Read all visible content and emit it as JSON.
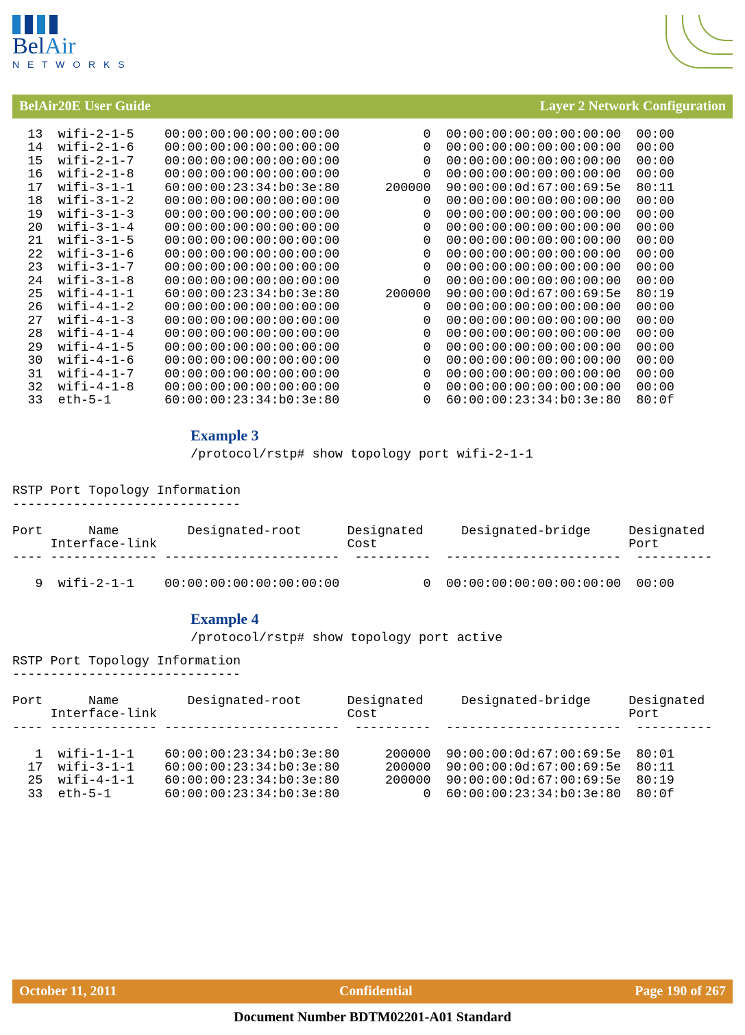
{
  "logo": {
    "line1_a": "Bel",
    "line1_b": "Air",
    "sub": "N E T W O R K S",
    "bar_colors": [
      "#1a7ec7",
      "#0b3c8c",
      "#1a7ec7",
      "#0b3c8c"
    ]
  },
  "banner": {
    "left": "BelAir20E User Guide",
    "right": "Layer 2 Network Configuration",
    "bg": "#9cb444"
  },
  "table1": {
    "col_widths": {
      "port": 4,
      "name": 14,
      "root": 25,
      "cost": 10,
      "bridge": 25,
      "dport": 7
    },
    "rows": [
      {
        "port": "13",
        "name": "wifi-2-1-5",
        "root": "00:00:00:00:00:00:00:00",
        "cost": "0",
        "bridge": "00:00:00:00:00:00:00:00",
        "dport": "00:00"
      },
      {
        "port": "14",
        "name": "wifi-2-1-6",
        "root": "00:00:00:00:00:00:00:00",
        "cost": "0",
        "bridge": "00:00:00:00:00:00:00:00",
        "dport": "00:00"
      },
      {
        "port": "15",
        "name": "wifi-2-1-7",
        "root": "00:00:00:00:00:00:00:00",
        "cost": "0",
        "bridge": "00:00:00:00:00:00:00:00",
        "dport": "00:00"
      },
      {
        "port": "16",
        "name": "wifi-2-1-8",
        "root": "00:00:00:00:00:00:00:00",
        "cost": "0",
        "bridge": "00:00:00:00:00:00:00:00",
        "dport": "00:00"
      },
      {
        "port": "17",
        "name": "wifi-3-1-1",
        "root": "60:00:00:23:34:b0:3e:80",
        "cost": "200000",
        "bridge": "90:00:00:0d:67:00:69:5e",
        "dport": "80:11"
      },
      {
        "port": "18",
        "name": "wifi-3-1-2",
        "root": "00:00:00:00:00:00:00:00",
        "cost": "0",
        "bridge": "00:00:00:00:00:00:00:00",
        "dport": "00:00"
      },
      {
        "port": "19",
        "name": "wifi-3-1-3",
        "root": "00:00:00:00:00:00:00:00",
        "cost": "0",
        "bridge": "00:00:00:00:00:00:00:00",
        "dport": "00:00"
      },
      {
        "port": "20",
        "name": "wifi-3-1-4",
        "root": "00:00:00:00:00:00:00:00",
        "cost": "0",
        "bridge": "00:00:00:00:00:00:00:00",
        "dport": "00:00"
      },
      {
        "port": "21",
        "name": "wifi-3-1-5",
        "root": "00:00:00:00:00:00:00:00",
        "cost": "0",
        "bridge": "00:00:00:00:00:00:00:00",
        "dport": "00:00"
      },
      {
        "port": "22",
        "name": "wifi-3-1-6",
        "root": "00:00:00:00:00:00:00:00",
        "cost": "0",
        "bridge": "00:00:00:00:00:00:00:00",
        "dport": "00:00"
      },
      {
        "port": "23",
        "name": "wifi-3-1-7",
        "root": "00:00:00:00:00:00:00:00",
        "cost": "0",
        "bridge": "00:00:00:00:00:00:00:00",
        "dport": "00:00"
      },
      {
        "port": "24",
        "name": "wifi-3-1-8",
        "root": "00:00:00:00:00:00:00:00",
        "cost": "0",
        "bridge": "00:00:00:00:00:00:00:00",
        "dport": "00:00"
      },
      {
        "port": "25",
        "name": "wifi-4-1-1",
        "root": "60:00:00:23:34:b0:3e:80",
        "cost": "200000",
        "bridge": "90:00:00:0d:67:00:69:5e",
        "dport": "80:19"
      },
      {
        "port": "26",
        "name": "wifi-4-1-2",
        "root": "00:00:00:00:00:00:00:00",
        "cost": "0",
        "bridge": "00:00:00:00:00:00:00:00",
        "dport": "00:00"
      },
      {
        "port": "27",
        "name": "wifi-4-1-3",
        "root": "00:00:00:00:00:00:00:00",
        "cost": "0",
        "bridge": "00:00:00:00:00:00:00:00",
        "dport": "00:00"
      },
      {
        "port": "28",
        "name": "wifi-4-1-4",
        "root": "00:00:00:00:00:00:00:00",
        "cost": "0",
        "bridge": "00:00:00:00:00:00:00:00",
        "dport": "00:00"
      },
      {
        "port": "29",
        "name": "wifi-4-1-5",
        "root": "00:00:00:00:00:00:00:00",
        "cost": "0",
        "bridge": "00:00:00:00:00:00:00:00",
        "dport": "00:00"
      },
      {
        "port": "30",
        "name": "wifi-4-1-6",
        "root": "00:00:00:00:00:00:00:00",
        "cost": "0",
        "bridge": "00:00:00:00:00:00:00:00",
        "dport": "00:00"
      },
      {
        "port": "31",
        "name": "wifi-4-1-7",
        "root": "00:00:00:00:00:00:00:00",
        "cost": "0",
        "bridge": "00:00:00:00:00:00:00:00",
        "dport": "00:00"
      },
      {
        "port": "32",
        "name": "wifi-4-1-8",
        "root": "00:00:00:00:00:00:00:00",
        "cost": "0",
        "bridge": "00:00:00:00:00:00:00:00",
        "dport": "00:00"
      },
      {
        "port": "33",
        "name": "eth-5-1",
        "root": "60:00:00:23:34:b0:3e:80",
        "cost": "0",
        "bridge": "60:00:00:23:34:b0:3e:80",
        "dport": "80:0f"
      }
    ]
  },
  "example3": {
    "title": "Example 3",
    "command": "/protocol/rstp# show topology port wifi-2-1-1",
    "info_title": "RSTP Port Topology Information",
    "info_rule": "------------------------------",
    "header": {
      "line1": "Port      Name         Designated-root      Designated     Designated-bridge     Designated",
      "line2": "     Interface-link                         Cost                                 Port",
      "rule": "---- -------------- -----------------------  ----------  -----------------------  ----------"
    },
    "rows": [
      {
        "port": "9",
        "name": "wifi-2-1-1",
        "root": "00:00:00:00:00:00:00:00",
        "cost": "0",
        "bridge": "00:00:00:00:00:00:00:00",
        "dport": "00:00"
      }
    ]
  },
  "example4": {
    "title": "Example 4",
    "command": "/protocol/rstp# show topology port active",
    "info_title": "RSTP Port Topology Information",
    "info_rule": "------------------------------",
    "header": {
      "line1": "Port      Name         Designated-root      Designated     Designated-bridge     Designated",
      "line2": "     Interface-link                         Cost                                 Port",
      "rule": "---- -------------- -----------------------  ----------  -----------------------  ----------"
    },
    "rows": [
      {
        "port": "1",
        "name": "wifi-1-1-1",
        "root": "60:00:00:23:34:b0:3e:80",
        "cost": "200000",
        "bridge": "90:00:00:0d:67:00:69:5e",
        "dport": "80:01"
      },
      {
        "port": "17",
        "name": "wifi-3-1-1",
        "root": "60:00:00:23:34:b0:3e:80",
        "cost": "200000",
        "bridge": "90:00:00:0d:67:00:69:5e",
        "dport": "80:11"
      },
      {
        "port": "25",
        "name": "wifi-4-1-1",
        "root": "60:00:00:23:34:b0:3e:80",
        "cost": "200000",
        "bridge": "90:00:00:0d:67:00:69:5e",
        "dport": "80:19"
      },
      {
        "port": "33",
        "name": "eth-5-1",
        "root": "60:00:00:23:34:b0:3e:80",
        "cost": "0",
        "bridge": "60:00:00:23:34:b0:3e:80",
        "dport": "80:0f"
      }
    ]
  },
  "footer": {
    "left": "October 11, 2011",
    "center": "Confidential",
    "right": "Page 190 of 267",
    "docnum": "Document Number BDTM02201-A01 Standard",
    "bg": "#d98a2b"
  }
}
